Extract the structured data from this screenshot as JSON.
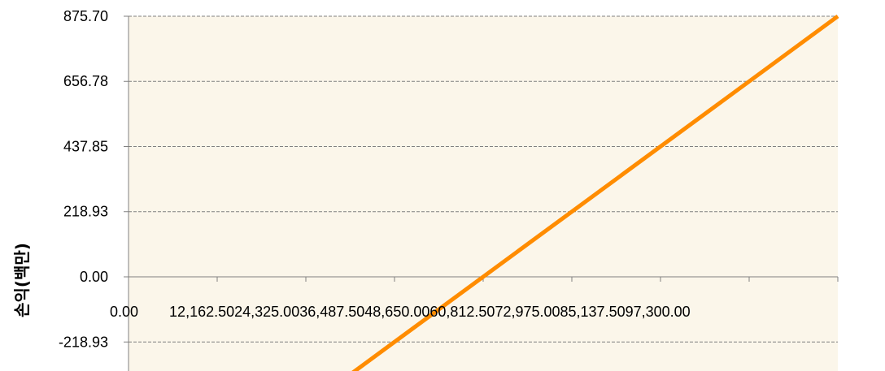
{
  "chart_data": {
    "type": "line",
    "title": "",
    "xlabel": "",
    "ylabel": "손익(백만)",
    "x_tick_labels": [
      "0.00",
      "12,162.50",
      "24,325.00",
      "36,487.50",
      "48,650.00",
      "60,812.50",
      "72,975.00",
      "85,137.50",
      "97,300.00"
    ],
    "y_tick_labels": [
      "875.70",
      "656.78",
      "437.85",
      "218.93",
      "0.00",
      "-218.93"
    ],
    "xlim": [
      0,
      97300
    ],
    "ylim": [
      -328.39,
      875.7
    ],
    "y_ticks": [
      875.7,
      656.78,
      437.85,
      218.93,
      0,
      -218.93
    ],
    "grid": true,
    "series": [
      {
        "x": [
          30400,
          97300
        ],
        "y": [
          -328.39,
          875.7
        ]
      }
    ],
    "colors": {
      "plot_background": "#FBF6EA",
      "line": "#FF8C00",
      "gridline": "#808080",
      "axis": "#808080",
      "text": "#000000"
    }
  }
}
